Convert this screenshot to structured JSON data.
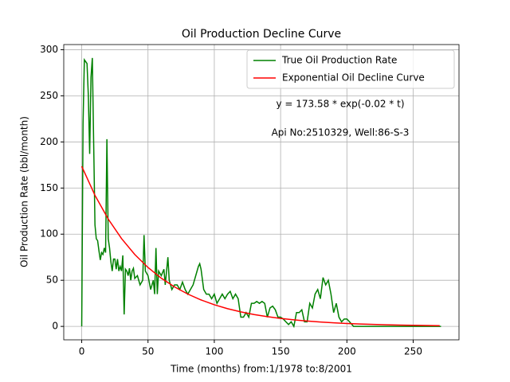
{
  "chart_data": {
    "type": "line",
    "title": "Oil Production Decline Curve",
    "xlabel": "Time (months) from:1/1978 to:8/2001",
    "ylabel": "Oil Production Rate (bbl/month)",
    "annotations": [
      "y = 173.58 * exp(-0.02 * t)",
      "Api No:2510329, Well:86-S-3"
    ],
    "xlim": [
      -13.55,
      284.55
    ],
    "ylim": [
      -14.55,
      305.55
    ],
    "xticks": [
      0,
      50,
      100,
      150,
      200,
      250
    ],
    "yticks": [
      0,
      50,
      100,
      150,
      200,
      250,
      300
    ],
    "grid": true,
    "legend": "upper right",
    "series": [
      {
        "name": "True Oil Production Rate",
        "color": "#008000",
        "x": [
          0,
          1,
          2,
          3,
          4,
          5,
          6,
          7,
          8,
          9,
          10,
          11,
          12,
          13,
          14,
          15,
          16,
          17,
          18,
          19,
          20,
          21,
          22,
          23,
          24,
          25,
          26,
          27,
          28,
          29,
          30,
          31,
          32,
          33,
          34,
          35,
          36,
          37,
          38,
          39,
          40,
          42,
          44,
          46,
          47,
          48,
          50,
          52,
          54,
          55,
          56,
          57,
          58,
          60,
          62,
          63,
          64,
          65,
          66,
          68,
          70,
          72,
          74,
          76,
          78,
          80,
          82,
          84,
          86,
          88,
          89,
          90,
          92,
          94,
          96,
          98,
          100,
          102,
          104,
          106,
          108,
          110,
          112,
          114,
          116,
          118,
          120,
          122,
          124,
          126,
          128,
          130,
          132,
          134,
          136,
          138,
          140,
          142,
          144,
          146,
          148,
          150,
          152,
          154,
          156,
          158,
          160,
          162,
          164,
          166,
          168,
          170,
          172,
          174,
          176,
          178,
          180,
          182,
          184,
          186,
          188,
          190,
          192,
          194,
          196,
          198,
          200,
          202,
          205,
          220,
          240,
          271
        ],
        "values": [
          0,
          220,
          289,
          287,
          285,
          250,
          187,
          270,
          291,
          200,
          110,
          95,
          93,
          82,
          72,
          80,
          78,
          85,
          80,
          203,
          95,
          85,
          70,
          60,
          73,
          73,
          62,
          73,
          60,
          65,
          60,
          77,
          13,
          62,
          60,
          55,
          63,
          50,
          60,
          63,
          52,
          55,
          45,
          50,
          99,
          60,
          55,
          40,
          50,
          35,
          85,
          35,
          60,
          55,
          62,
          45,
          60,
          75,
          50,
          40,
          45,
          45,
          40,
          48,
          40,
          35,
          40,
          45,
          55,
          65,
          68,
          62,
          40,
          35,
          35,
          30,
          35,
          25,
          30,
          35,
          30,
          35,
          38,
          30,
          35,
          30,
          10,
          10,
          15,
          10,
          25,
          25,
          27,
          25,
          27,
          25,
          10,
          20,
          22,
          18,
          10,
          10,
          8,
          5,
          2,
          5,
          0,
          15,
          15,
          18,
          5,
          5,
          25,
          20,
          35,
          40,
          30,
          53,
          45,
          50,
          35,
          15,
          25,
          10,
          5,
          8,
          8,
          5,
          0,
          0,
          0,
          0
        ]
      },
      {
        "name": "Exponential Oil Decline Curve",
        "color": "#ff0000",
        "x": [
          0,
          10,
          20,
          30,
          40,
          50,
          60,
          70,
          80,
          90,
          100,
          110,
          120,
          130,
          140,
          150,
          160,
          170,
          180,
          190,
          200,
          210,
          220,
          230,
          240,
          250,
          260,
          270
        ],
        "values": [
          173.58,
          142.11,
          116.35,
          95.26,
          78.0,
          63.86,
          52.28,
          42.8,
          35.05,
          28.69,
          23.49,
          19.23,
          15.75,
          12.89,
          10.56,
          8.64,
          7.08,
          5.79,
          4.74,
          3.88,
          3.18,
          2.6,
          2.13,
          1.75,
          1.43,
          1.17,
          0.96,
          0.78
        ]
      }
    ]
  }
}
